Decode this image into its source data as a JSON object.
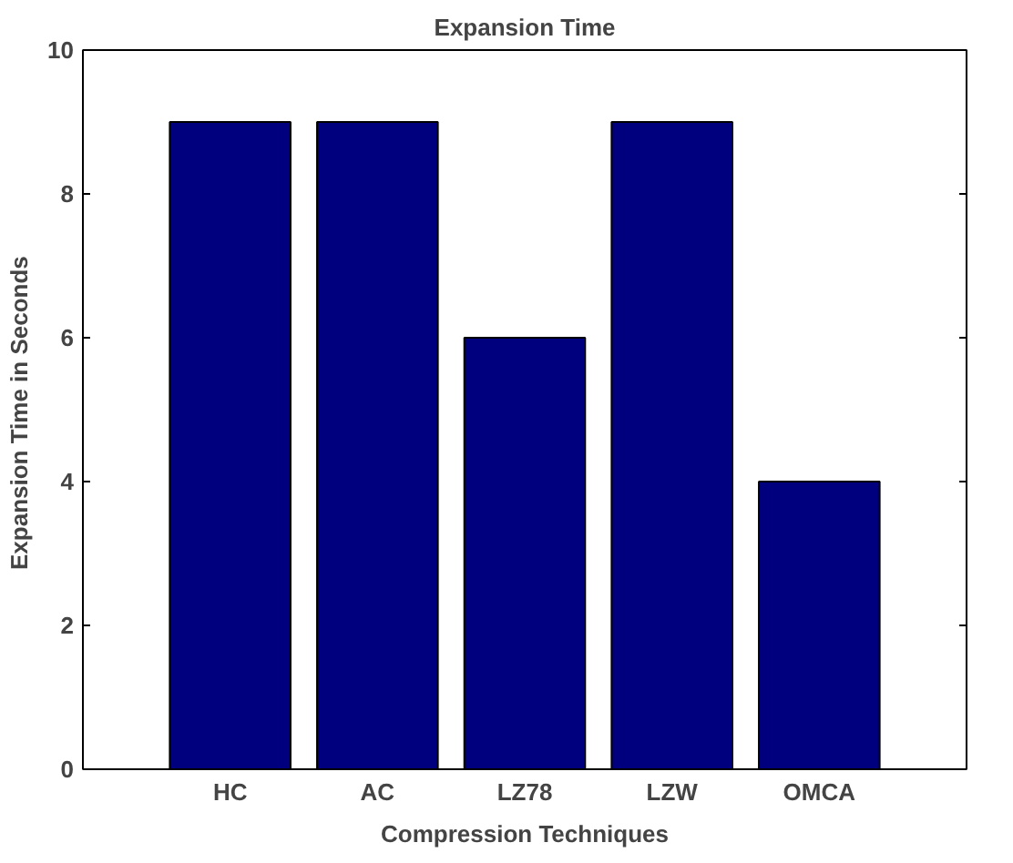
{
  "chart_data": {
    "type": "bar",
    "title": "Expansion Time",
    "xlabel": "Compression Techniques",
    "ylabel": "Expansion  Time in Seconds",
    "categories": [
      "HC",
      "AC",
      "LZ78",
      "LZW",
      "OMCA"
    ],
    "values": [
      9,
      9,
      6,
      9,
      4
    ],
    "color": "#00007f",
    "ylim": [
      0,
      10
    ],
    "yticks": [
      0,
      2,
      4,
      6,
      8,
      10
    ],
    "grid": false
  }
}
